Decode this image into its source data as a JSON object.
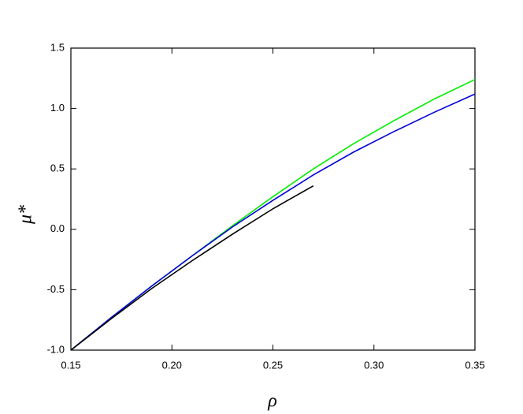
{
  "chart_data": {
    "type": "line",
    "xlabel": "ρ",
    "ylabel": "μ*",
    "x": [
      0.15,
      0.17,
      0.19,
      0.21,
      0.23,
      0.25,
      0.27,
      0.29,
      0.31,
      0.33,
      0.35
    ],
    "series": [
      {
        "color": "#00ee00",
        "values": [
          -1.0,
          -0.73,
          -0.47,
          -0.22,
          0.03,
          0.27,
          0.5,
          0.71,
          0.9,
          1.08,
          1.24
        ]
      },
      {
        "color": "#0000dd",
        "values": [
          -1.0,
          -0.73,
          -0.47,
          -0.22,
          0.02,
          0.24,
          0.45,
          0.64,
          0.81,
          0.97,
          1.12
        ]
      },
      {
        "color": "#000000",
        "values": [
          -1.0,
          -0.74,
          -0.49,
          -0.26,
          -0.04,
          0.17,
          0.36,
          null,
          null,
          null,
          null
        ]
      }
    ],
    "xlim": [
      0.15,
      0.35
    ],
    "xticks": [
      0.15,
      {
        "value": 0.2,
        "label": "0.20"
      },
      0.25,
      {
        "value": 0.3,
        "label": "0.30"
      },
      0.35
    ],
    "ylim": [
      -1,
      1.5
    ],
    "yticks": [
      {
        "value": -1,
        "label": "-1.0"
      },
      -0.5,
      {
        "value": 0,
        "label": "0.0"
      },
      0.5,
      {
        "value": 1,
        "label": "1.0"
      },
      1.5
    ]
  }
}
